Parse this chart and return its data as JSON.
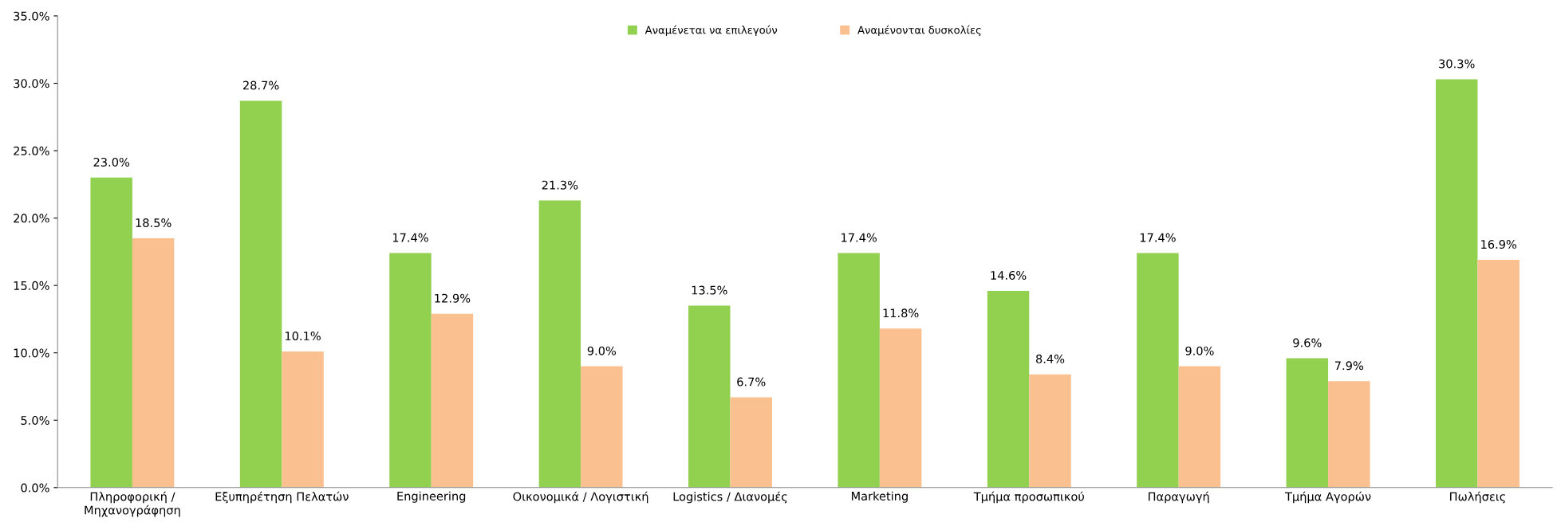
{
  "chart_data": {
    "type": "bar",
    "categories": [
      "Πληροφορική /\nΜηχανογράφηση",
      "Εξυπηρέτηση Πελατών",
      "Engineering",
      "Οικονομικά / Λογιστική",
      "Logistics / Διανομές",
      "Marketing",
      "Τμήμα προσωπικού",
      "Παραγωγή",
      "Τμήμα Αγορών",
      "Πωλήσεις"
    ],
    "series": [
      {
        "name": "Αναμένεται να επιλεγούν",
        "color": "#92d050",
        "values": [
          23.0,
          28.7,
          17.4,
          21.3,
          13.5,
          17.4,
          14.6,
          17.4,
          9.6,
          30.3
        ],
        "value_labels": [
          "23.0%",
          "28.7%",
          "17.4%",
          "21.3%",
          "13.5%",
          "17.4%",
          "14.6%",
          "17.4%",
          "9.6%",
          "30.3%"
        ]
      },
      {
        "name": "Αναμένονται δυσκολίες",
        "color": "#fac090",
        "values": [
          18.5,
          10.1,
          12.9,
          9.0,
          6.7,
          11.8,
          8.4,
          9.0,
          7.9,
          16.9
        ],
        "value_labels": [
          "18.5%",
          "10.1%",
          "12.9%",
          "9.0%",
          "6.7%",
          "11.8%",
          "8.4%",
          "9.0%",
          "7.9%",
          "16.9%"
        ]
      }
    ],
    "ylim": [
      0,
      35
    ],
    "yticks": [
      {
        "value": 0,
        "label": "0.0%"
      },
      {
        "value": 5,
        "label": "5.0%"
      },
      {
        "value": 10,
        "label": "10.0%"
      },
      {
        "value": 15,
        "label": "15.0%"
      },
      {
        "value": 20,
        "label": "20.0%"
      },
      {
        "value": 25,
        "label": "25.0%"
      },
      {
        "value": 30,
        "label": "30.0%"
      },
      {
        "value": 35,
        "label": "35.0%"
      }
    ],
    "grid": false,
    "legend": "top"
  }
}
